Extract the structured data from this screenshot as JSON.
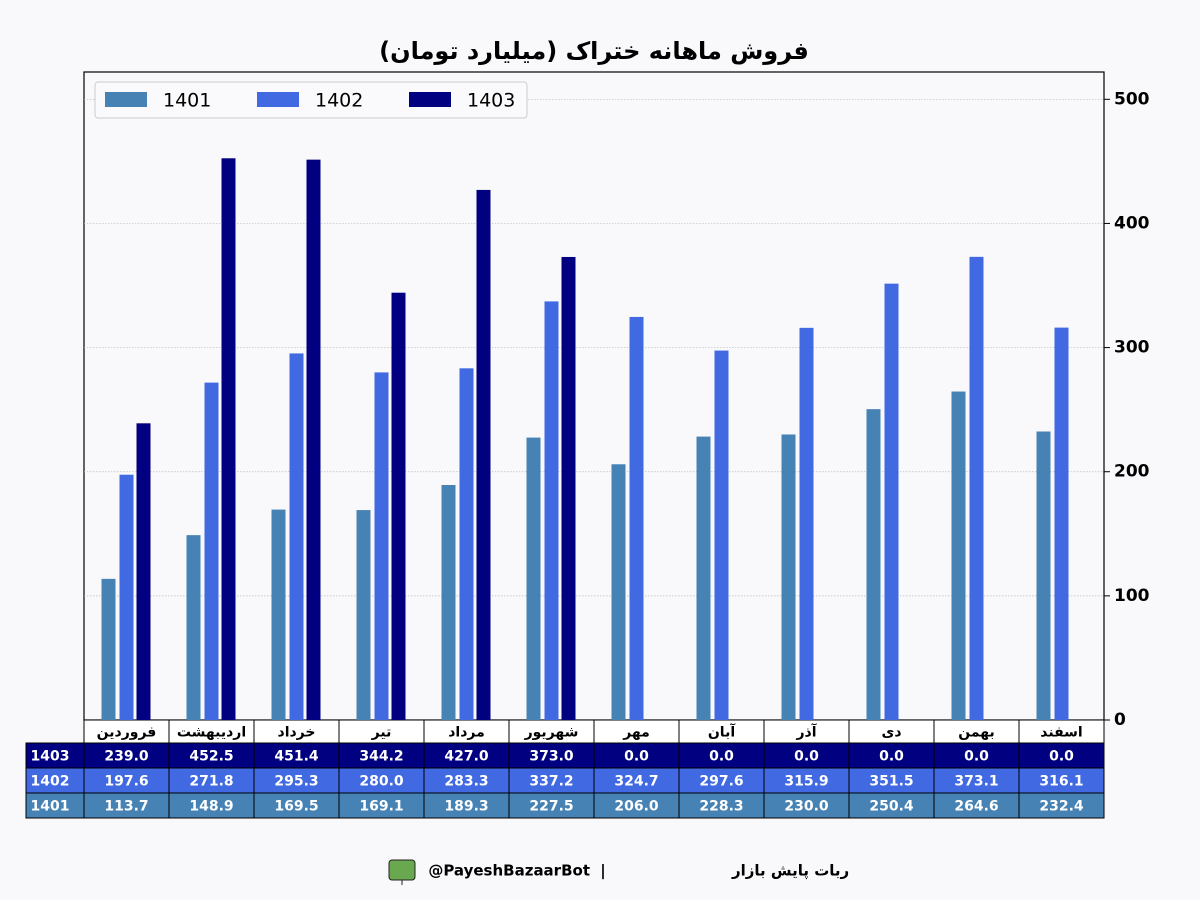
{
  "chart_data": {
    "type": "bar",
    "title": "فروش ماهانه ختراک (میلیارد تومان)",
    "categories": [
      "فروردین",
      "اردیبهشت",
      "خرداد",
      "تیر",
      "مرداد",
      "شهریور",
      "مهر",
      "آبان",
      "آذر",
      "دی",
      "بهمن",
      "اسفند"
    ],
    "series": [
      {
        "name": "1401",
        "color": "#4682b4",
        "values": [
          113.7,
          148.9,
          169.5,
          169.1,
          189.3,
          227.5,
          206,
          228.3,
          230,
          250.4,
          264.6,
          232.4
        ],
        "value_labels": [
          "113.7",
          "148.9",
          "169.5",
          "169.1",
          "189.3",
          "227.5",
          "206.0",
          "228.3",
          "230.0",
          "250.4",
          "264.6",
          "232.4"
        ]
      },
      {
        "name": "1402",
        "color": "#4169e1",
        "values": [
          197.6,
          271.8,
          295.3,
          280,
          283.3,
          337.2,
          324.7,
          297.6,
          315.9,
          351.5,
          373.1,
          316.1
        ],
        "value_labels": [
          "197.6",
          "271.8",
          "295.3",
          "280.0",
          "283.3",
          "337.2",
          "324.7",
          "297.6",
          "315.9",
          "351.5",
          "373.1",
          "316.1"
        ]
      },
      {
        "name": "1403",
        "color": "#000080",
        "values": [
          239,
          452.5,
          451.4,
          344.2,
          427,
          373,
          0,
          0,
          0,
          0,
          0,
          0
        ],
        "value_labels": [
          "239.0",
          "452.5",
          "451.4",
          "344.2",
          "427.0",
          "373.0",
          "0.0",
          "0.0",
          "0.0",
          "0.0",
          "0.0",
          "0.0"
        ]
      }
    ],
    "ylim": [
      0,
      522
    ],
    "yticks": [
      0,
      100,
      200,
      300,
      400,
      500
    ],
    "grid": true,
    "legend": "upper left"
  },
  "footer": {
    "name": "ربات پایش بازار",
    "separator": "|",
    "handle": "@PayeshBazaarBot"
  }
}
